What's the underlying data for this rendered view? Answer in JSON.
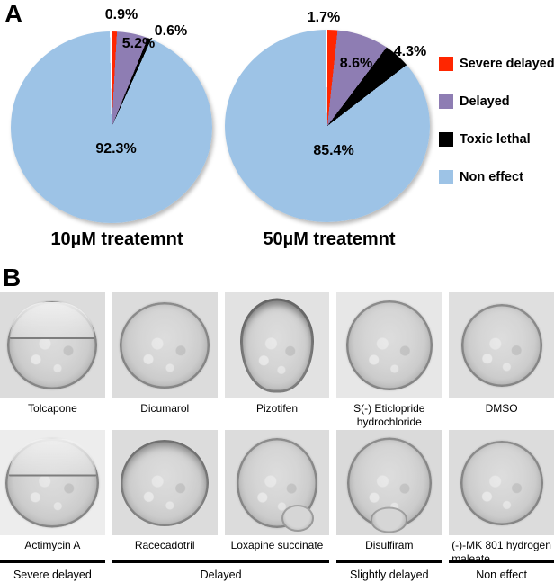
{
  "figure": {
    "panelA_label": "A",
    "panelB_label": "B"
  },
  "colors": {
    "severe_delayed": "#ff2600",
    "delayed": "#8e7db3",
    "toxic_lethal": "#000000",
    "non_effect": "#9dc3e6"
  },
  "chart_data": [
    {
      "type": "pie",
      "title": "10µM treatemnt",
      "labels": [
        "Severe delayed",
        "Delayed",
        "Toxic lethal",
        "Non effect"
      ],
      "values": [
        0.9,
        5.2,
        0.6,
        92.3
      ],
      "data_labels": [
        "0.9%",
        "5.2%",
        "0.6%",
        "92.3%"
      ],
      "slice_colors": [
        "#ff2600",
        "#8e7db3",
        "#000000",
        "#9dc3e6"
      ],
      "start_angle_deg": 0,
      "direction": "clockwise",
      "legend_position": "right"
    },
    {
      "type": "pie",
      "title": "50µM treatemnt",
      "labels": [
        "Severe delayed",
        "Delayed",
        "Toxic lethal",
        "Non effect"
      ],
      "values": [
        1.7,
        8.6,
        4.3,
        85.4
      ],
      "data_labels": [
        "1.7%",
        "8.6%",
        "4.3%",
        "85.4%"
      ],
      "slice_colors": [
        "#ff2600",
        "#8e7db3",
        "#000000",
        "#9dc3e6"
      ],
      "start_angle_deg": 0,
      "direction": "clockwise",
      "legend_position": "right"
    }
  ],
  "legend": {
    "items": [
      {
        "label": "Severe delayed",
        "color": "#ff2600"
      },
      {
        "label": "Delayed",
        "color": "#8e7db3"
      },
      {
        "label": "Toxic lethal",
        "color": "#000000"
      },
      {
        "label": "Non effect",
        "color": "#9dc3e6"
      }
    ]
  },
  "panelB": {
    "rows": [
      {
        "cells": [
          {
            "label": "Tolcapone"
          },
          {
            "label": "Dicumarol"
          },
          {
            "label": "Pizotifen"
          },
          {
            "label": "S(-) Eticlopride hydrochloride"
          },
          {
            "label": "DMSO"
          }
        ]
      },
      {
        "cells": [
          {
            "label": "Actimycin A"
          },
          {
            "label": "Racecadotril"
          },
          {
            "label": "Loxapine succinate"
          },
          {
            "label": "Disulfiram"
          },
          {
            "label": "(-)-MK 801 hydrogen maleate"
          }
        ]
      }
    ],
    "categories": [
      {
        "label": "Severe delayed"
      },
      {
        "label": "Delayed"
      },
      {
        "label": "Slightly delayed"
      },
      {
        "label": "Non effect"
      }
    ]
  }
}
